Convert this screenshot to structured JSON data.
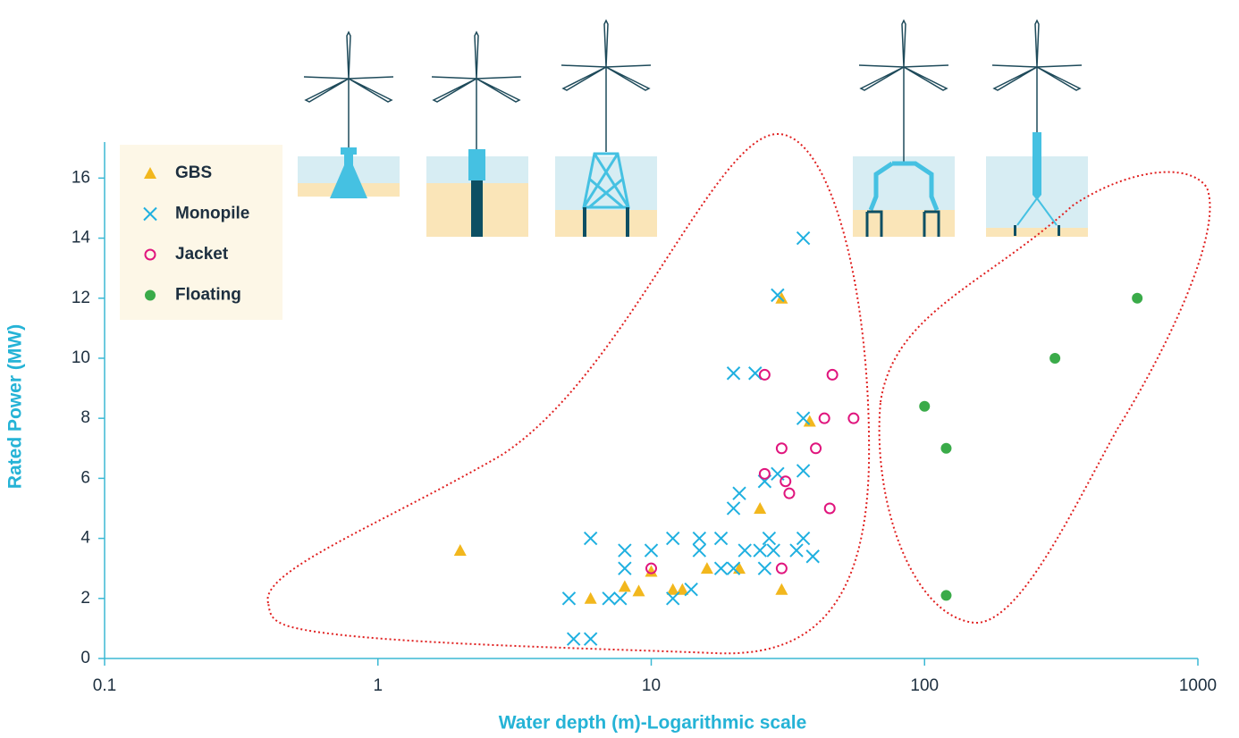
{
  "chart_data": {
    "type": "scatter",
    "x_label": "Water depth (m)-Logarithmic scale",
    "y_label": "Rated Power (MW)",
    "x_log": true,
    "xlim": [
      0.1,
      1000
    ],
    "xticks": [
      0.1,
      1,
      10,
      100,
      1000
    ],
    "ylim": [
      0,
      17.2
    ],
    "yticks": [
      0,
      2,
      4,
      6,
      8,
      10,
      12,
      14,
      16
    ],
    "axis_color": "#3bb8d4",
    "grid": false,
    "legend": "upper left",
    "series": [
      {
        "name": "GBS",
        "color": "#f2b71d",
        "marker": "triangle",
        "x": [
          2,
          6,
          8,
          9,
          10,
          12,
          13,
          16,
          21,
          25,
          30,
          38,
          30
        ],
        "values": [
          3.6,
          2,
          2.4,
          2.25,
          2.9,
          2.3,
          2.3,
          3,
          3,
          5,
          12,
          7.9,
          2.3
        ]
      },
      {
        "name": "Monopile",
        "color": "#1fb0e0",
        "marker": "x",
        "x": [
          5,
          5.2,
          6,
          6,
          7,
          7.7,
          8,
          8,
          10,
          12,
          12,
          14,
          15,
          15,
          18,
          18,
          20,
          20,
          21,
          20,
          22,
          24,
          25,
          26,
          27,
          26,
          28,
          29,
          29,
          34,
          36,
          36,
          36,
          36,
          39
        ],
        "values": [
          2,
          0.65,
          0.65,
          4,
          2,
          2,
          3,
          3.6,
          3.6,
          2,
          4,
          2.3,
          4,
          3.6,
          4,
          3,
          9.5,
          5,
          5.5,
          3,
          3.6,
          9.5,
          3.6,
          3,
          4,
          5.9,
          3.6,
          6.15,
          12.1,
          3.6,
          6.25,
          8,
          4,
          14,
          3.4
        ]
      },
      {
        "name": "Jacket",
        "color": "#e0157d",
        "marker": "circle-open",
        "x": [
          10,
          26,
          26,
          30,
          31,
          32,
          30,
          40,
          43,
          46,
          45,
          55
        ],
        "values": [
          3,
          9.45,
          6.15,
          7,
          5.9,
          5.5,
          3,
          7,
          8,
          9.45,
          5,
          8
        ]
      },
      {
        "name": "Floating",
        "color": "#3aab49",
        "marker": "circle",
        "x": [
          100,
          120,
          120,
          300,
          600
        ],
        "values": [
          8.4,
          7,
          2.1,
          10,
          12
        ]
      }
    ]
  }
}
